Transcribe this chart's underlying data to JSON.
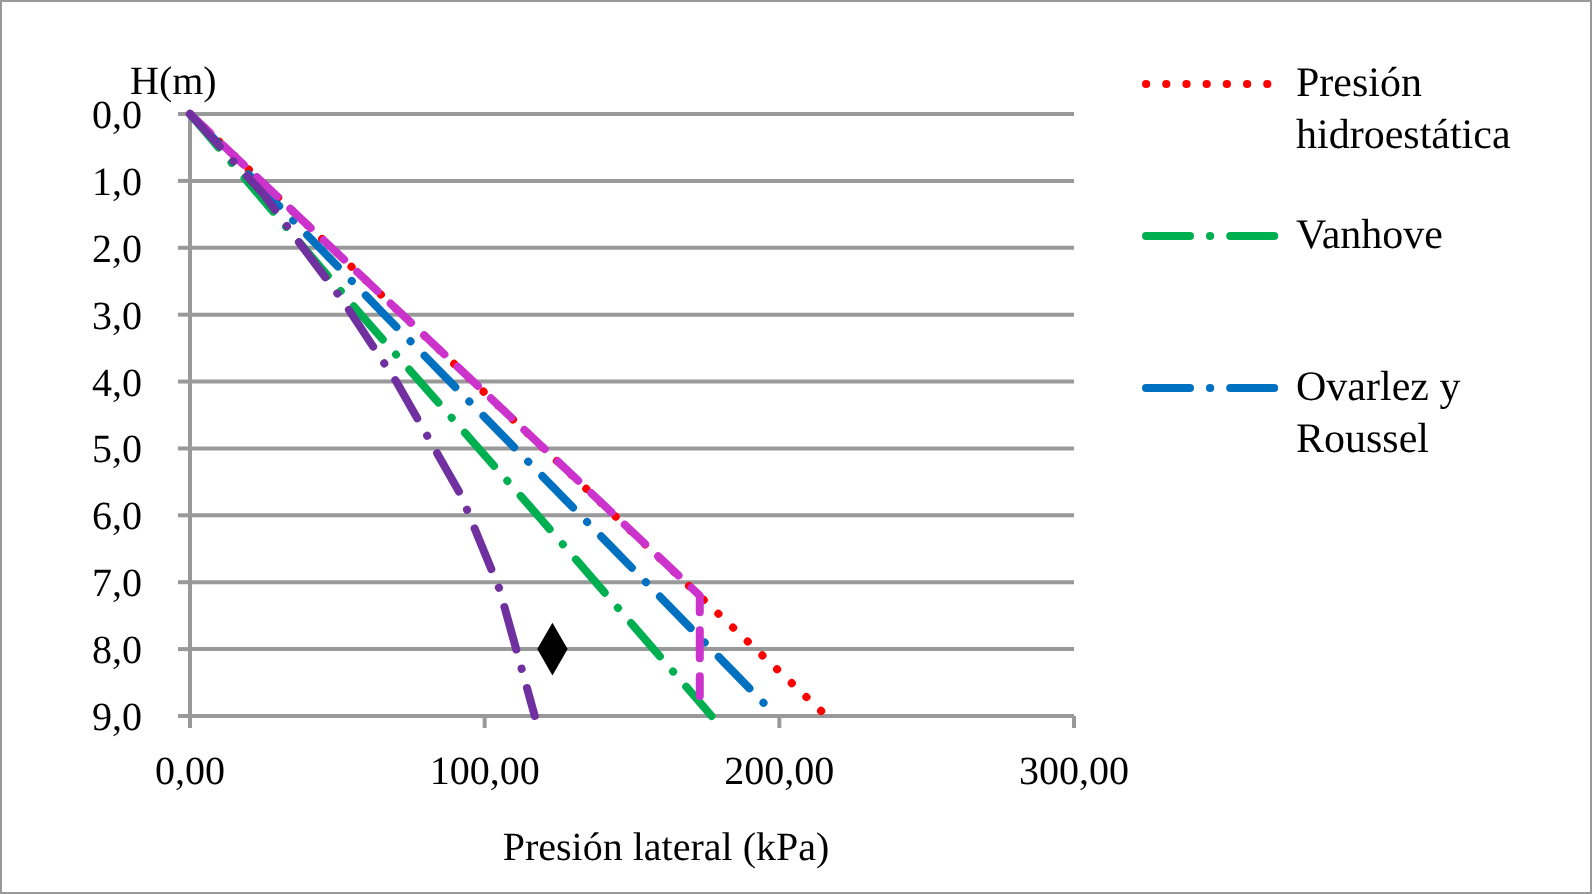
{
  "chart_data": {
    "type": "line",
    "xlabel": "Presión lateral (kPa)",
    "ylabel": "H(m)",
    "xlim": [
      0,
      300
    ],
    "xticks": [
      {
        "value": 0,
        "label": "0,00"
      },
      {
        "value": 100,
        "label": "100,00"
      },
      {
        "value": 200,
        "label": "200,00"
      },
      {
        "value": 300,
        "label": "300,00"
      }
    ],
    "ylim": [
      9,
      0
    ],
    "yticks": [
      {
        "value": 0,
        "label": "0,0"
      },
      {
        "value": 1,
        "label": "1,0"
      },
      {
        "value": 2,
        "label": "2,0"
      },
      {
        "value": 3,
        "label": "3,0"
      },
      {
        "value": 4,
        "label": "4,0"
      },
      {
        "value": 5,
        "label": "5,0"
      },
      {
        "value": 6,
        "label": "6,0"
      },
      {
        "value": 7,
        "label": "7,0"
      },
      {
        "value": 8,
        "label": "8,0"
      },
      {
        "value": 9,
        "label": "9,0"
      }
    ],
    "grid": "y",
    "legend": "right",
    "marker": "none",
    "series": [
      {
        "name": "Presión hidroestática",
        "color": "#ff0000",
        "line_style": "dotted",
        "x": [
          0,
          216
        ],
        "values": [
          0,
          9
        ]
      },
      {
        "name": "Vanhove",
        "color": "#00b050",
        "line_style": "dashdot",
        "x": [
          0,
          58,
          118,
          177
        ],
        "values": [
          0,
          3,
          6,
          9
        ]
      },
      {
        "name": "Ovarlez y Roussel",
        "color": "#0070c0",
        "line_style": "dashdot",
        "x": [
          0,
          66,
          137,
          199
        ],
        "values": [
          0,
          3,
          6.2,
          9
        ]
      },
      {
        "color": "#cc33cc",
        "line_style": "dashed",
        "x": [
          0,
          173,
          173
        ],
        "values": [
          0,
          7.2,
          8.7
        ]
      },
      {
        "color": "#7030a0",
        "line_style": "dashdot",
        "x": [
          0,
          25,
          35,
          52,
          70,
          92,
          105,
          117
        ],
        "values": [
          0,
          1.2,
          1.8,
          2.8,
          4,
          5.7,
          7.1,
          9
        ]
      },
      {
        "type": "scatter",
        "color": "#000000",
        "marker": "diamond",
        "x": [
          123
        ],
        "values": [
          8
        ]
      }
    ]
  }
}
